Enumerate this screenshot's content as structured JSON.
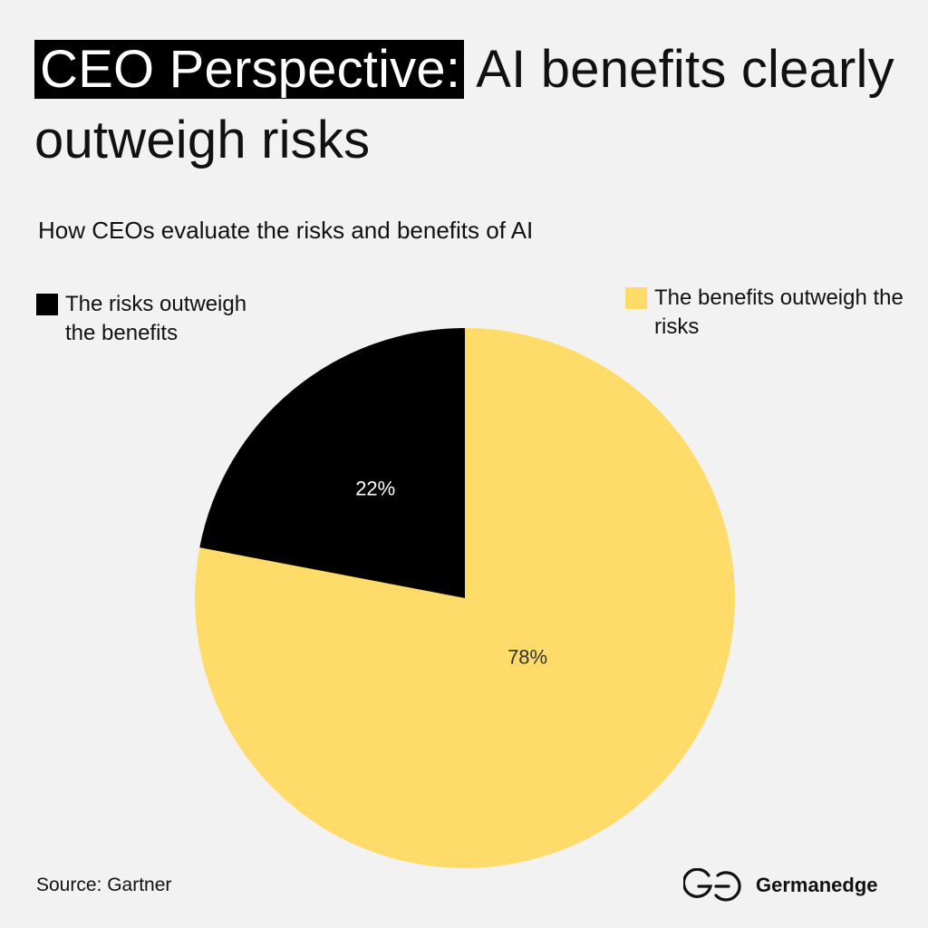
{
  "header": {
    "title_highlight": "CEO Perspective:",
    "title_rest": " AI benefits clearly outweigh risks",
    "subtitle": "How CEOs evaluate the risks and benefits of AI"
  },
  "legend": {
    "risks": "The risks outweigh the benefits",
    "benefits": "The benefits outweigh the risks"
  },
  "chart_data": {
    "type": "pie",
    "title": "How CEOs evaluate the risks and benefits of AI",
    "slices": [
      {
        "label": "The benefits outweigh the risks",
        "value": 78,
        "display": "78%",
        "color": "#ffdc6a",
        "text_color": "#333333"
      },
      {
        "label": "The risks outweigh the benefits",
        "value": 22,
        "display": "22%",
        "color": "#000000",
        "text_color": "#ffffff"
      }
    ],
    "legend_placement": "top",
    "start": "12 o'clock, clockwise"
  },
  "footer": {
    "source": "Source: Gartner",
    "brand": "Germanedge",
    "logo_icon": "germanedge-logo-icon"
  },
  "colors": {
    "background": "#f2f2f2",
    "accent_yellow": "#ffdc6a",
    "black": "#000000"
  }
}
